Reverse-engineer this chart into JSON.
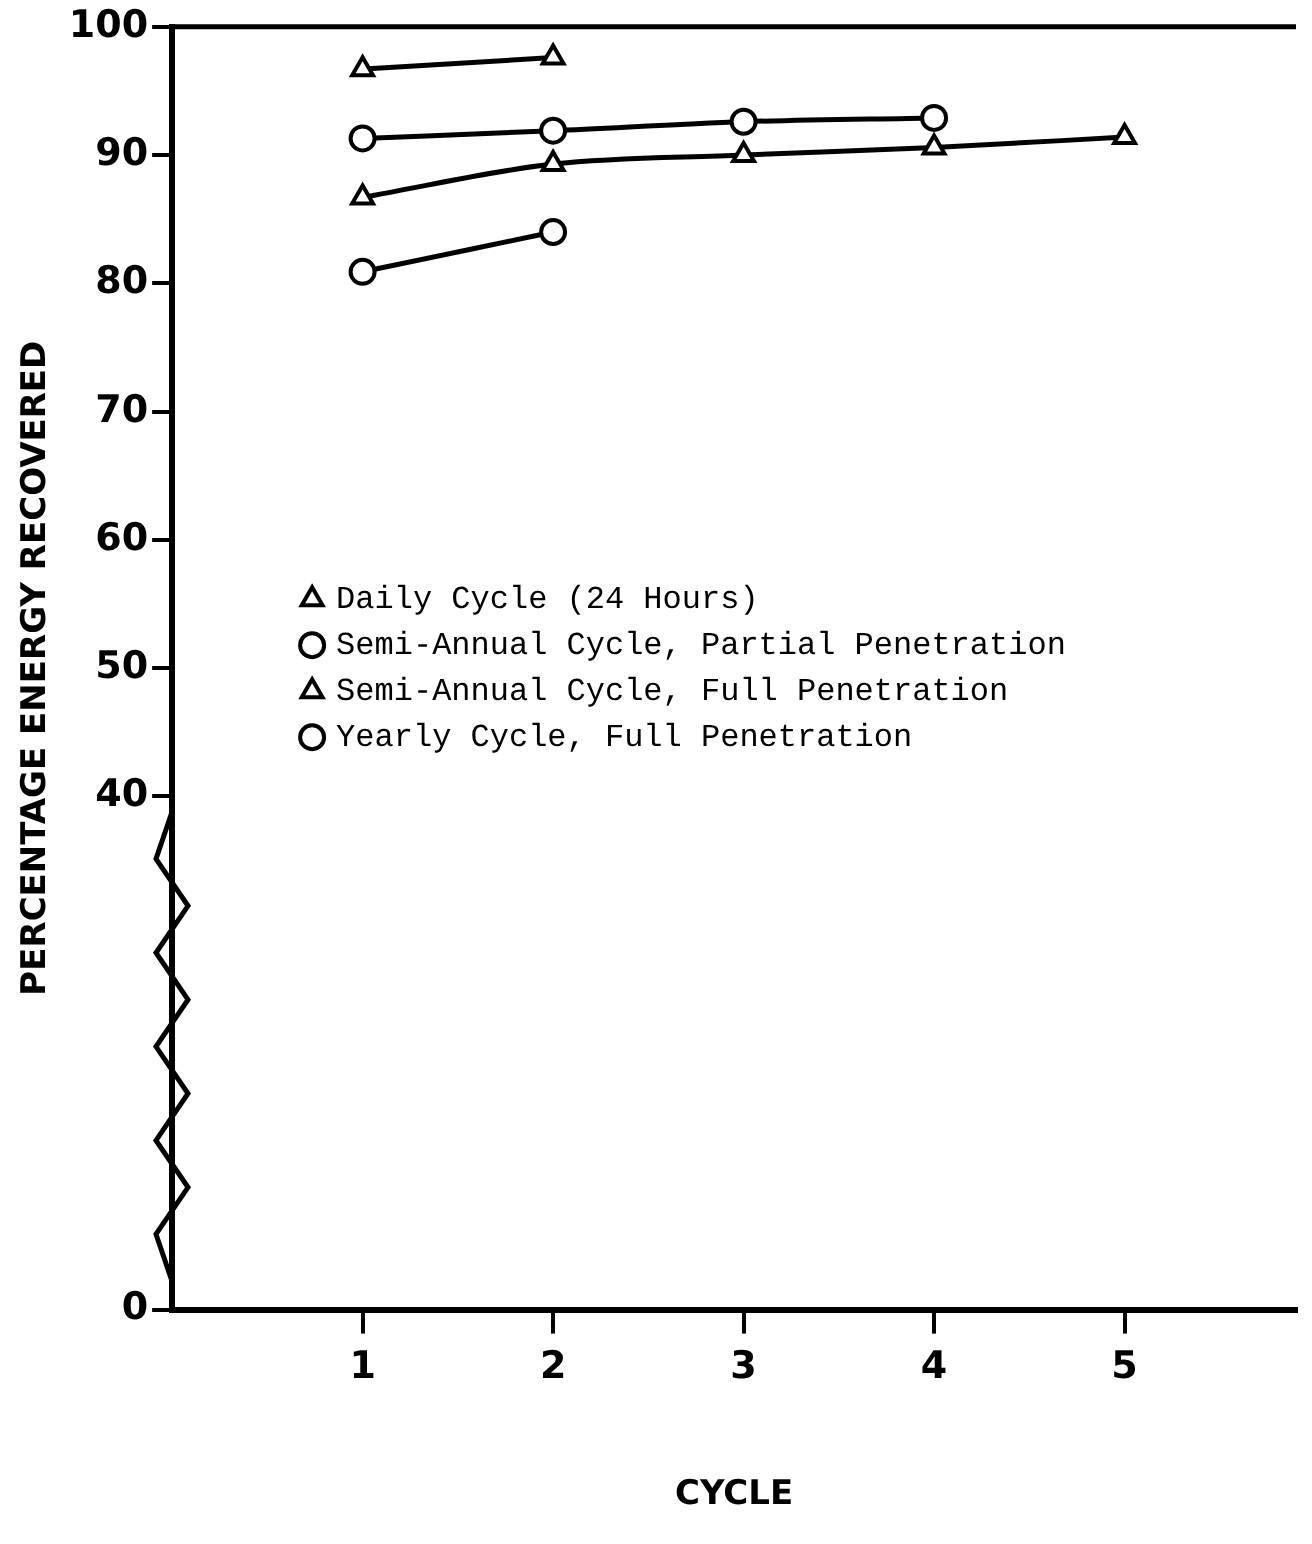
{
  "chart_data": {
    "type": "line",
    "xlabel": "CYCLE",
    "ylabel": "PERCENTAGE ENERGY RECOVERED",
    "xlim": [
      0,
      5.9
    ],
    "xticks": [
      1,
      2,
      3,
      4,
      5
    ],
    "ylim": [
      0,
      100
    ],
    "yticks": [
      0,
      40,
      50,
      60,
      70,
      80,
      90,
      100
    ],
    "grid": false,
    "legend": "center left",
    "line_style": "solid",
    "series": [
      {
        "name": "Daily Cycle (24 Hours)",
        "color": "#000000",
        "marker": "triangle",
        "x": [
          1,
          2
        ],
        "values": [
          96.7,
          97.6
        ]
      },
      {
        "name": "Semi-Annual Cycle, Partial Penetration",
        "color": "#000000",
        "marker": "circle",
        "x": [
          1,
          2,
          3,
          4
        ],
        "values": [
          91.3,
          91.9,
          92.6,
          92.9
        ]
      },
      {
        "name": "Semi-Annual Cycle, Full Penetration",
        "color": "#000000",
        "marker": "triangle",
        "x": [
          1,
          2,
          3,
          4,
          5
        ],
        "values": [
          86.7,
          89.3,
          90.0,
          90.6,
          91.4
        ]
      },
      {
        "name": "Yearly Cycle, Full Penetration",
        "color": "#000000",
        "marker": "circle",
        "x": [
          1,
          2
        ],
        "values": [
          80.9,
          84.0
        ]
      }
    ]
  }
}
